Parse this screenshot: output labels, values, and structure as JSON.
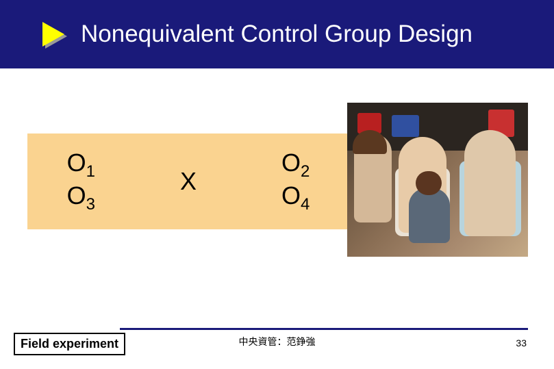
{
  "header": {
    "title": "Nonequivalent Control Group Design",
    "background_color": "#1a1a7a",
    "text_color": "#ffffff",
    "bullet_color": "#ffff00"
  },
  "design": {
    "background_color": "#fad390",
    "font_size": 36,
    "columns": [
      {
        "rows": [
          {
            "symbol": "O",
            "sub": "1"
          },
          {
            "symbol": "O",
            "sub": "3"
          }
        ]
      },
      {
        "rows": [
          {
            "symbol": "X",
            "sub": ""
          }
        ]
      },
      {
        "rows": [
          {
            "symbol": "O",
            "sub": "2"
          },
          {
            "symbol": "O",
            "sub": "4"
          }
        ]
      }
    ]
  },
  "footer": {
    "line_color": "#1a1a7a",
    "box_label": "Field experiment",
    "center_text": "中央資管：范錚強",
    "page_number": "33"
  },
  "image": {
    "description": "family-toy-store-photo"
  }
}
